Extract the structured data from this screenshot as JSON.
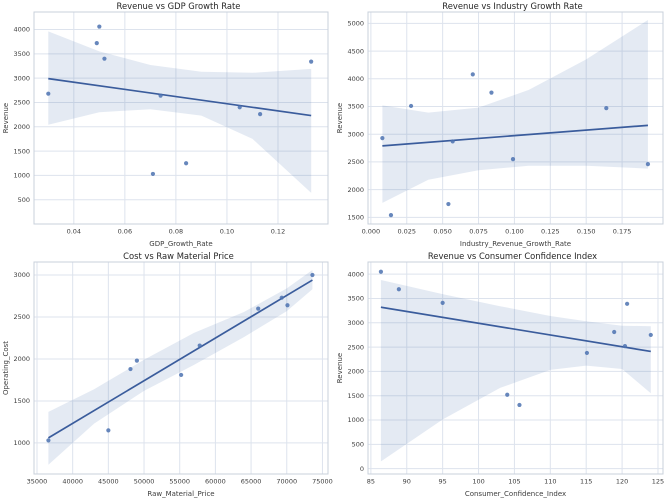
{
  "figure": {
    "layout": "2x2 scatter-regression grid",
    "background": "#ffffff"
  },
  "colors": {
    "point": "#4c72b0",
    "line": "#3a5c9c",
    "band": "#4c72b0",
    "band_opacity": 0.15,
    "grid": "#dde3ed",
    "spine": "#c9d0db",
    "title_text": "#262626",
    "tick_text": "#3d3d3d"
  },
  "chart_data": [
    {
      "type": "scatter",
      "title": "Revenue vs GDP Growth Rate",
      "xlabel": "GDP_Growth_Rate",
      "ylabel": "Revenue",
      "grid": true,
      "legend": false,
      "xlim": [
        0.0244,
        0.1396
      ],
      "ylim": [
        0,
        4360
      ],
      "xticks": [
        0.04,
        0.06,
        0.08,
        0.1,
        0.12
      ],
      "xtick_labels": [
        "0.04",
        "0.06",
        "0.08",
        "0.10",
        "0.12"
      ],
      "yticks": [
        500,
        1000,
        1500,
        2000,
        2500,
        3000,
        3500,
        4000
      ],
      "ytick_labels": [
        "500",
        "1000",
        "1500",
        "2000",
        "2500",
        "3000",
        "3500",
        "4000"
      ],
      "points": [
        [
          0.03,
          2680
        ],
        [
          0.049,
          3720
        ],
        [
          0.05,
          4060
        ],
        [
          0.052,
          3400
        ],
        [
          0.071,
          1030
        ],
        [
          0.074,
          2640
        ],
        [
          0.084,
          1250
        ],
        [
          0.105,
          2400
        ],
        [
          0.113,
          2260
        ],
        [
          0.133,
          3340
        ]
      ],
      "regression_line": {
        "x": [
          0.03,
          0.133
        ],
        "y": [
          2990,
          2230
        ]
      },
      "ci_band": {
        "x": [
          0.03,
          0.05,
          0.07,
          0.09,
          0.11,
          0.133
        ],
        "upper": [
          3960,
          3550,
          3270,
          3130,
          3110,
          3190
        ],
        "lower": [
          2040,
          2300,
          2360,
          2230,
          1750,
          640
        ]
      }
    },
    {
      "type": "scatter",
      "title": "Revenue vs Industry Growth Rate",
      "xlabel": "Industry_Revenue_Growth_Rate",
      "ylabel": "Revenue",
      "grid": true,
      "legend": false,
      "xlim": [
        -0.002,
        0.2035
      ],
      "ylim": [
        1380,
        5205
      ],
      "xticks": [
        0.0,
        0.025,
        0.05,
        0.075,
        0.1,
        0.125,
        0.15,
        0.175
      ],
      "xtick_labels": [
        "0.000",
        "0.025",
        "0.050",
        "0.075",
        "0.100",
        "0.125",
        "0.150",
        "0.175"
      ],
      "yticks": [
        1500,
        2000,
        2500,
        3000,
        3500,
        4000,
        4500,
        5000
      ],
      "ytick_labels": [
        "1500",
        "2000",
        "2500",
        "3000",
        "3500",
        "4000",
        "4500",
        "5000"
      ],
      "points": [
        [
          0.008,
          2930
        ],
        [
          0.014,
          1540
        ],
        [
          0.028,
          3510
        ],
        [
          0.054,
          1740
        ],
        [
          0.057,
          2870
        ],
        [
          0.071,
          4080
        ],
        [
          0.084,
          3750
        ],
        [
          0.099,
          2550
        ],
        [
          0.164,
          3470
        ],
        [
          0.193,
          2460
        ]
      ],
      "regression_line": {
        "x": [
          0.008,
          0.193
        ],
        "y": [
          2790,
          3160
        ]
      },
      "ci_band": {
        "x": [
          0.008,
          0.04,
          0.075,
          0.11,
          0.15,
          0.193
        ],
        "upper": [
          3520,
          3390,
          3480,
          3800,
          4350,
          5060
        ],
        "lower": [
          1760,
          2180,
          2350,
          2430,
          2430,
          2380
        ]
      }
    },
    {
      "type": "scatter",
      "title": "Cost vs Raw Material Price",
      "xlabel": "Raw_Material_Price",
      "ylabel": "Operating_Cost",
      "grid": true,
      "legend": false,
      "xlim": [
        34580,
        75780
      ],
      "ylim": [
        630,
        3155
      ],
      "xticks": [
        35000,
        40000,
        45000,
        50000,
        55000,
        60000,
        65000,
        70000,
        75000
      ],
      "xtick_labels": [
        "35000",
        "40000",
        "45000",
        "50000",
        "55000",
        "60000",
        "65000",
        "70000",
        "75000"
      ],
      "yticks": [
        1000,
        1500,
        2000,
        2500,
        3000
      ],
      "ytick_labels": [
        "1000",
        "1500",
        "2000",
        "2500",
        "3000"
      ],
      "points": [
        [
          36600,
          1030
        ],
        [
          45000,
          1150
        ],
        [
          48100,
          1880
        ],
        [
          49000,
          1980
        ],
        [
          55200,
          1810
        ],
        [
          57800,
          2160
        ],
        [
          66000,
          2600
        ],
        [
          69300,
          2730
        ],
        [
          70100,
          2640
        ],
        [
          73600,
          3000
        ]
      ],
      "regression_line": {
        "x": [
          36600,
          73600
        ],
        "y": [
          1060,
          2940
        ]
      },
      "ci_band": {
        "x": [
          36600,
          43000,
          50000,
          57000,
          64000,
          70000,
          73600
        ],
        "upper": [
          1370,
          1640,
          1990,
          2310,
          2560,
          2840,
          3060
        ],
        "lower": [
          740,
          1230,
          1620,
          1930,
          2260,
          2570,
          2830
        ]
      }
    },
    {
      "type": "scatter",
      "title": "Revenue vs Consumer Confidence Index",
      "xlabel": "Consumer_Confidence_Index",
      "ylabel": "Revenue",
      "grid": true,
      "legend": false,
      "xlim": [
        84.6,
        125.7
      ],
      "ylim": [
        -110,
        4250
      ],
      "xticks": [
        85,
        90,
        95,
        100,
        105,
        110,
        115,
        120,
        125
      ],
      "xtick_labels": [
        "85",
        "90",
        "95",
        "100",
        "105",
        "110",
        "115",
        "120",
        "125"
      ],
      "yticks": [
        0,
        500,
        1000,
        1500,
        2000,
        2500,
        3000,
        3500,
        4000
      ],
      "ytick_labels": [
        "0",
        "500",
        "1000",
        "1500",
        "2000",
        "2500",
        "3000",
        "3500",
        "4000"
      ],
      "points": [
        [
          86.4,
          4050
        ],
        [
          88.9,
          3690
        ],
        [
          95.0,
          3410
        ],
        [
          104.0,
          1520
        ],
        [
          105.7,
          1310
        ],
        [
          115.1,
          2380
        ],
        [
          118.9,
          2810
        ],
        [
          120.4,
          2520
        ],
        [
          120.7,
          3390
        ],
        [
          124.0,
          2750
        ]
      ],
      "regression_line": {
        "x": [
          86.4,
          124.0
        ],
        "y": [
          3320,
          2410
        ]
      },
      "ci_band": {
        "x": [
          86.4,
          95,
          103,
          110,
          115,
          120,
          124
        ],
        "upper": [
          3880,
          3590,
          3340,
          3140,
          3030,
          2940,
          2930
        ],
        "lower": [
          150,
          1010,
          1660,
          2030,
          2120,
          2050,
          1550
        ]
      }
    }
  ]
}
